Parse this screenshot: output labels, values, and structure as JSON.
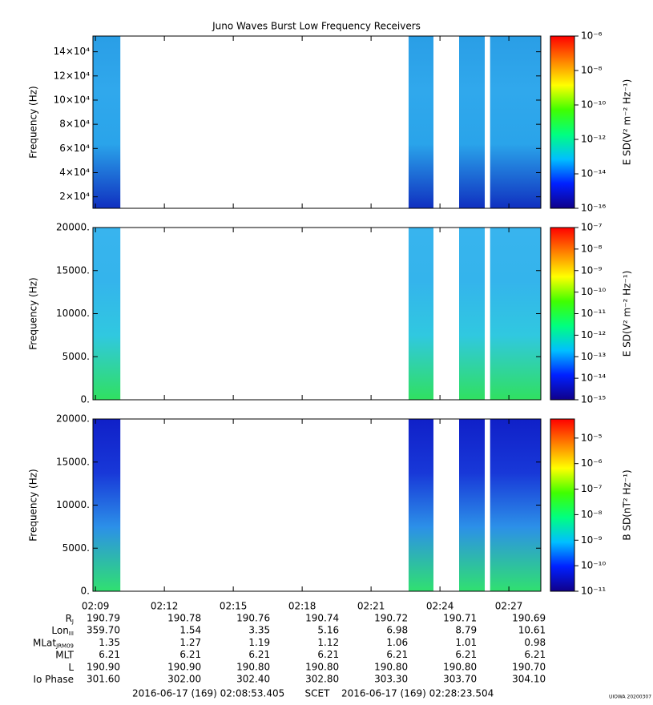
{
  "title": "Juno Waves Burst Low Frequency Receivers",
  "chart_data": [
    {
      "type": "spectrogram",
      "ylabel": "Frequency (Hz)",
      "ylim": [
        10500,
        153000
      ],
      "yticks": [
        {
          "value": 20000,
          "label": "2×10⁴"
        },
        {
          "value": 40000,
          "label": "4×10⁴"
        },
        {
          "value": 60000,
          "label": "6×10⁴"
        },
        {
          "value": 80000,
          "label": "8×10⁴"
        },
        {
          "value": 100000,
          "label": "10×10⁴"
        },
        {
          "value": 120000,
          "label": "12×10⁴"
        },
        {
          "value": 140000,
          "label": "14×10⁴"
        }
      ],
      "gradient": [
        "#2a9ee6",
        "#30a8ec",
        "#2aa4ea",
        "#1030c0"
      ],
      "colorbar": {
        "label": "E SD(V² m⁻² Hz⁻¹)",
        "log": true,
        "clim": [
          1e-16,
          1e-06
        ],
        "ticks": [
          {
            "value": 1e-06,
            "label": "10⁻⁶"
          },
          {
            "value": 1e-08,
            "label": "10⁻⁸"
          },
          {
            "value": 1e-10,
            "label": "10⁻¹⁰"
          },
          {
            "value": 1e-12,
            "label": "10⁻¹²"
          },
          {
            "value": 1e-14,
            "label": "10⁻¹⁴"
          },
          {
            "value": 1e-16,
            "label": "10⁻¹⁶"
          }
        ]
      }
    },
    {
      "type": "spectrogram",
      "ylabel": "Frequency (Hz)",
      "ylim": [
        0,
        20000
      ],
      "yticks": [
        {
          "value": 0,
          "label": "0."
        },
        {
          "value": 5000,
          "label": "5000."
        },
        {
          "value": 10000,
          "label": "10000."
        },
        {
          "value": 15000,
          "label": "15000."
        },
        {
          "value": 20000,
          "label": "20000."
        }
      ],
      "gradient": [
        "#38b4ee",
        "#34b4ec",
        "#30c8e0",
        "#30e060"
      ],
      "colorbar": {
        "label": "E SD(V² m⁻² Hz⁻¹)",
        "log": true,
        "clim": [
          1e-15,
          1e-07
        ],
        "ticks": [
          {
            "value": 1e-07,
            "label": "10⁻⁷"
          },
          {
            "value": 1e-08,
            "label": "10⁻⁸"
          },
          {
            "value": 1e-09,
            "label": "10⁻⁹"
          },
          {
            "value": 1e-10,
            "label": "10⁻¹⁰"
          },
          {
            "value": 1e-11,
            "label": "10⁻¹¹"
          },
          {
            "value": 1e-12,
            "label": "10⁻¹²"
          },
          {
            "value": 1e-13,
            "label": "10⁻¹³"
          },
          {
            "value": 1e-14,
            "label": "10⁻¹⁴"
          },
          {
            "value": 1e-15,
            "label": "10⁻¹⁵"
          }
        ]
      }
    },
    {
      "type": "spectrogram",
      "ylabel": "Frequency (Hz)",
      "ylim": [
        0,
        20000
      ],
      "yticks": [
        {
          "value": 0,
          "label": "0."
        },
        {
          "value": 5000,
          "label": "5000."
        },
        {
          "value": 10000,
          "label": "10000."
        },
        {
          "value": 15000,
          "label": "15000."
        },
        {
          "value": 20000,
          "label": "20000."
        }
      ],
      "gradient": [
        "#1020c8",
        "#1838d8",
        "#2c90e8",
        "#30e070"
      ],
      "colorbar": {
        "label": "B SD(nT² Hz⁻¹)",
        "log": true,
        "clim": [
          1e-11,
          5.6e-05
        ],
        "ticks": [
          {
            "value": 1e-05,
            "label": "10⁻⁵"
          },
          {
            "value": 1e-06,
            "label": "10⁻⁶"
          },
          {
            "value": 1e-07,
            "label": "10⁻⁷"
          },
          {
            "value": 1e-08,
            "label": "10⁻⁸"
          },
          {
            "value": 1e-09,
            "label": "10⁻⁹"
          },
          {
            "value": 1e-10,
            "label": "10⁻¹⁰"
          },
          {
            "value": 1e-11,
            "label": "10⁻¹¹"
          }
        ]
      }
    }
  ],
  "scet_intervals": [
    [
      "02:08:53",
      "02:10:05"
    ],
    [
      "02:22:38",
      "02:23:43"
    ],
    [
      "02:24:50",
      "02:25:57"
    ],
    [
      "02:26:11",
      "02:28:23"
    ]
  ],
  "xticks": [
    "02:09",
    "02:12",
    "02:15",
    "02:18",
    "02:21",
    "02:24",
    "02:27"
  ],
  "ephemeris": [
    {
      "label": "R",
      "sub": "J",
      "values": [
        "190.79",
        "190.78",
        "190.76",
        "190.74",
        "190.72",
        "190.71",
        "190.69"
      ]
    },
    {
      "label": "Lon",
      "sub": "III",
      "values": [
        "359.70",
        "1.54",
        "3.35",
        "5.16",
        "6.98",
        "8.79",
        "10.61"
      ]
    },
    {
      "label": "MLat",
      "sub": "JRM09",
      "values": [
        "1.35",
        "1.27",
        "1.19",
        "1.12",
        "1.06",
        "1.01",
        "0.98"
      ]
    },
    {
      "label": "MLT",
      "sub": "",
      "values": [
        "6.21",
        "6.21",
        "6.21",
        "6.21",
        "6.21",
        "6.21",
        "6.21"
      ]
    },
    {
      "label": "L",
      "sub": "",
      "values": [
        "190.90",
        "190.90",
        "190.80",
        "190.80",
        "190.80",
        "190.80",
        "190.70"
      ]
    },
    {
      "label": "Io Phase",
      "sub": "",
      "values": [
        "301.60",
        "302.00",
        "302.40",
        "302.80",
        "303.30",
        "303.70",
        "304.10"
      ]
    }
  ],
  "footer": {
    "start": "2016-06-17 (169) 02:08:53.405",
    "label": "SCET",
    "end": "2016-06-17 (169) 02:28:23.504"
  },
  "credit": "UIOWA 20200307"
}
